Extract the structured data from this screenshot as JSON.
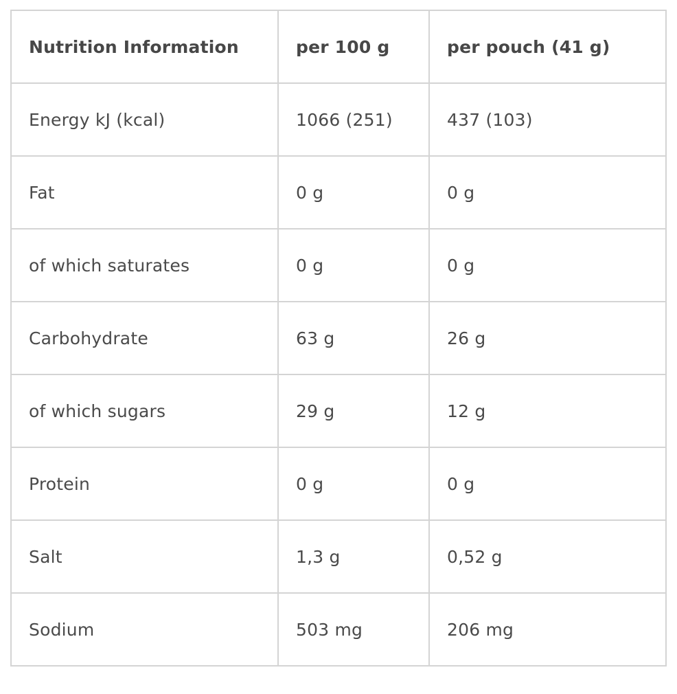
{
  "table": {
    "headers": [
      "Nutrition Information",
      "per 100 g",
      "per pouch (41 g)"
    ],
    "rows": [
      [
        "Energy kJ (kcal)",
        "1066 (251)",
        "437 (103)"
      ],
      [
        "Fat",
        "0 g",
        "0 g"
      ],
      [
        "of which saturates",
        "0 g",
        "0 g"
      ],
      [
        "Carbohydrate",
        "63 g",
        "26 g"
      ],
      [
        "of which sugars",
        "29 g",
        "12 g"
      ],
      [
        "Protein",
        "0 g",
        "0 g"
      ],
      [
        "Salt",
        "1,3 g",
        "0,52 g"
      ],
      [
        "Sodium",
        "503 mg",
        "206 mg"
      ]
    ]
  }
}
